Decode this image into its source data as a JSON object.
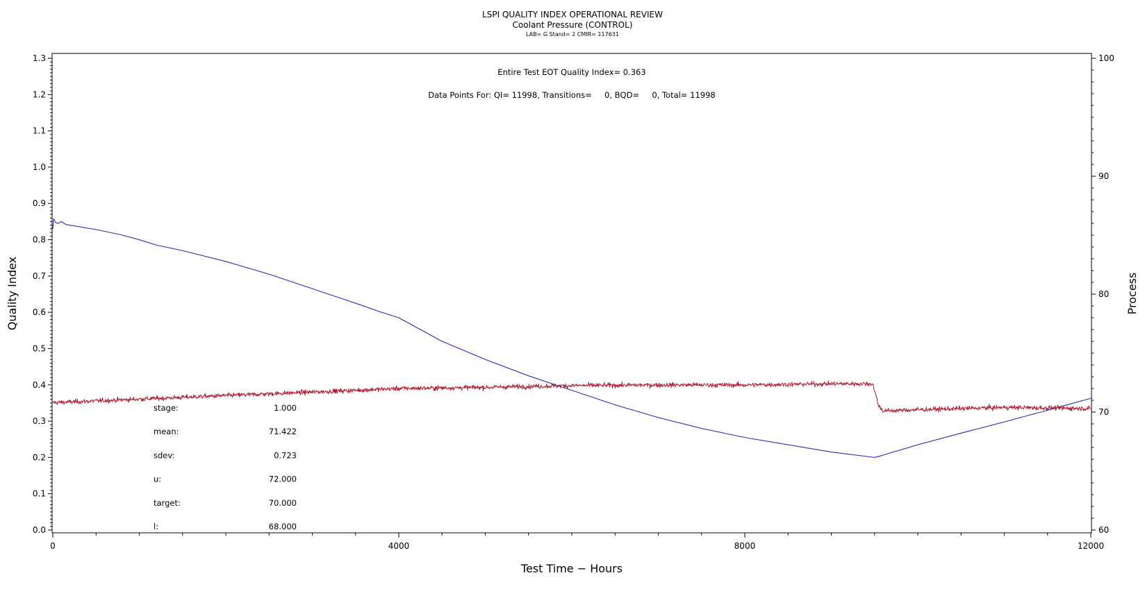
{
  "chart_data": {
    "type": "line",
    "title": "LSPI QUALITY INDEX OPERATIONAL REVIEW",
    "subtitle": "Coolant Pressure (CONTROL)",
    "subtitle2": "LAB= G Stand= 2 CMIR= 117631",
    "xlabel": "Test Time − Hours",
    "ylabel_left": "Quality Index",
    "ylabel_right": "Process",
    "xlim": [
      0,
      12000
    ],
    "ylim_left": [
      0,
      1.3
    ],
    "ylim_right": [
      60,
      100
    ],
    "x_ticks": [
      "0",
      "4000",
      "8000",
      "12000"
    ],
    "y_left_ticks": [
      "0.0",
      "0.1",
      "0.2",
      "0.3",
      "0.4",
      "0.5",
      "0.6",
      "0.7",
      "0.8",
      "0.9",
      "1.0",
      "1.1",
      "1.2",
      "1.3"
    ],
    "y_right_ticks": [
      "60",
      "70",
      "80",
      "90",
      "100"
    ],
    "grid": false,
    "annotations": {
      "eot": "Entire Test EOT Quality Index=  0.363",
      "points": "Data Points For: QI= 11998, Transitions=     0, BQD=     0, Total= 11998"
    },
    "stats": [
      {
        "label": "stage:",
        "value": "1.000"
      },
      {
        "label": "mean:",
        "value": "71.422"
      },
      {
        "label": "sdev:",
        "value": "0.723"
      },
      {
        "label": "u:",
        "value": "72.000"
      },
      {
        "label": "target:",
        "value": "70.000"
      },
      {
        "label": "l:",
        "value": "68.000"
      }
    ],
    "series": [
      {
        "axis": "left",
        "color": "#2b2bb8",
        "x": [
          0,
          10,
          30,
          60,
          100,
          150,
          300,
          500,
          800,
          1000,
          1200,
          1500,
          2000,
          2500,
          3000,
          3500,
          3800,
          4000,
          4500,
          5000,
          5500,
          6000,
          6500,
          7000,
          7500,
          8000,
          8500,
          9000,
          9500,
          9550,
          10000,
          10500,
          11000,
          11500,
          12000
        ],
        "values": [
          0.83,
          0.858,
          0.848,
          0.845,
          0.85,
          0.842,
          0.836,
          0.828,
          0.813,
          0.8,
          0.785,
          0.77,
          0.74,
          0.705,
          0.665,
          0.625,
          0.6,
          0.585,
          0.52,
          0.47,
          0.425,
          0.385,
          0.345,
          0.31,
          0.28,
          0.255,
          0.235,
          0.215,
          0.2,
          0.203,
          0.235,
          0.267,
          0.298,
          0.33,
          0.363
        ]
      },
      {
        "axis": "right",
        "color": "#b01c2e",
        "noise_sd": 0.25,
        "x": [
          0,
          1000,
          2000,
          3000,
          4000,
          5000,
          6000,
          7000,
          8000,
          9000,
          9480,
          9500,
          9550,
          9600,
          10000,
          11000,
          12000
        ],
        "values": [
          70.8,
          71.1,
          71.4,
          71.7,
          72.0,
          72.1,
          72.25,
          72.3,
          72.3,
          72.4,
          72.4,
          71.8,
          70.5,
          70.1,
          70.2,
          70.4,
          70.3
        ]
      }
    ]
  }
}
